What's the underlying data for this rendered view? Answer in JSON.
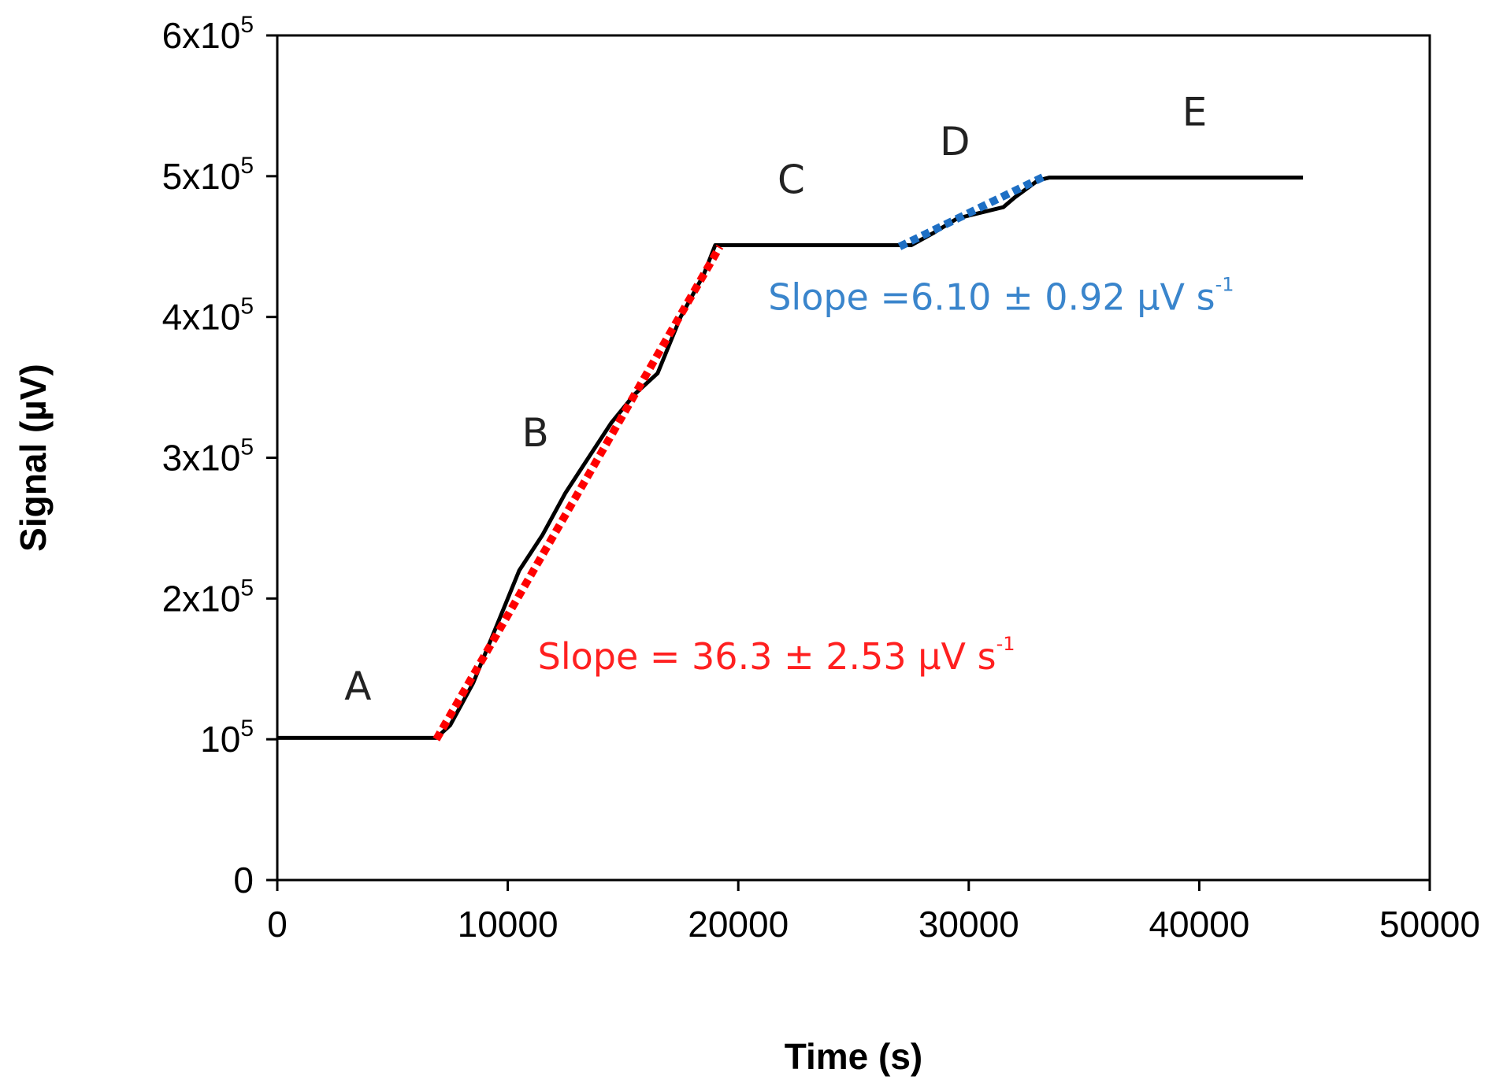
{
  "chart_data": {
    "type": "line",
    "xlabel": "Time (s)",
    "ylabel": "Signal (µV)",
    "xlim": [
      0,
      50000
    ],
    "ylim": [
      0,
      600000
    ],
    "x_ticks": [
      0,
      10000,
      20000,
      30000,
      40000,
      50000
    ],
    "x_tick_labels": [
      "0",
      "10000",
      "20000",
      "30000",
      "40000",
      "50000"
    ],
    "y_ticks": [
      {
        "value": 0,
        "base": "0",
        "exp": ""
      },
      {
        "value": 100000,
        "base": "10",
        "exp": "5"
      },
      {
        "value": 200000,
        "base": "2x10",
        "exp": "5"
      },
      {
        "value": 300000,
        "base": "3x10",
        "exp": "5"
      },
      {
        "value": 400000,
        "base": "4x10",
        "exp": "5"
      },
      {
        "value": 500000,
        "base": "5x10",
        "exp": "5"
      },
      {
        "value": 600000,
        "base": "6x10",
        "exp": "5"
      }
    ],
    "grid": false,
    "series": [
      {
        "color": "#000000",
        "style": "solid",
        "x": [
          0,
          2000,
          4000,
          6000,
          6900,
          7500,
          8500,
          9500,
          10500,
          11500,
          12500,
          13500,
          14500,
          15500,
          16500,
          17500,
          18500,
          19000,
          20000,
          22000,
          24000,
          26000,
          27500,
          28500,
          29500,
          30500,
          31500,
          32000,
          33000,
          33500,
          36000,
          40000,
          44500
        ],
        "y": [
          101000,
          101000,
          101000,
          101000,
          101000,
          110000,
          140000,
          180000,
          220000,
          245000,
          275000,
          300000,
          325000,
          345000,
          360000,
          400000,
          430000,
          451000,
          451000,
          451000,
          451000,
          451000,
          451000,
          460000,
          470000,
          474000,
          478000,
          485000,
          497000,
          499000,
          499000,
          499000,
          499000
        ]
      },
      {
        "name": "",
        "color": "#ff0000",
        "style": "dotted",
        "x": [
          6900,
          19200
        ],
        "y": [
          100000,
          450000
        ]
      },
      {
        "name": "",
        "color": "#1e6fc4",
        "style": "dotted",
        "x": [
          27000,
          33300
        ],
        "y": [
          450000,
          500000
        ]
      }
    ],
    "annotations": [
      {
        "text": "A",
        "x": 3500,
        "y": 128000
      },
      {
        "text": "B",
        "x": 11200,
        "y": 308000
      },
      {
        "text": "C",
        "x": 22300,
        "y": 488000
      },
      {
        "text": "D",
        "x": 29400,
        "y": 515000
      },
      {
        "text": "E",
        "x": 39800,
        "y": 536000
      }
    ],
    "slope_labels": [
      {
        "text": "Slope = 36.3 ± 2.53 µV s",
        "sup": "-1",
        "color": "#ff2020",
        "x": 11300,
        "y": 150000
      },
      {
        "text": "Slope =6.10 ± 0.92 µV s",
        "sup": "-1",
        "color": "#3a85cc",
        "x": 21300,
        "y": 405000
      }
    ]
  }
}
